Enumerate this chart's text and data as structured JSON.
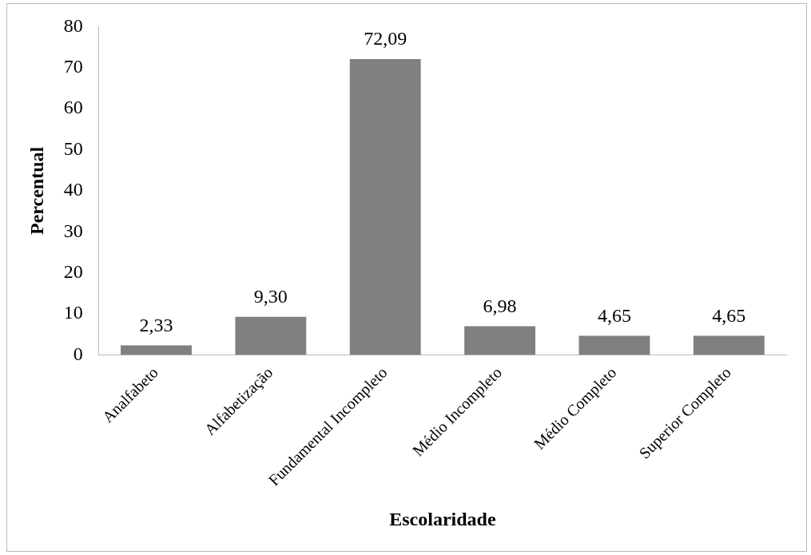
{
  "chart_data": {
    "type": "bar",
    "xlabel": "Escolaridade",
    "ylabel": "Percentual",
    "categories": [
      "Analfabeto",
      "Alfabetização",
      "Fundamental Incompleto",
      "Médio Incompleto",
      "Médio Completo",
      "Superior Completo"
    ],
    "values": [
      2.33,
      9.3,
      72.09,
      6.98,
      4.65,
      4.65
    ],
    "value_labels": [
      "2,33",
      "9,30",
      "72,09",
      "6,98",
      "4,65",
      "4,65"
    ],
    "color": "#808080",
    "ylim": [
      0,
      80
    ],
    "yticks": [
      0,
      10,
      20,
      30,
      40,
      50,
      60,
      70,
      80
    ],
    "grid": false,
    "legend": false
  }
}
